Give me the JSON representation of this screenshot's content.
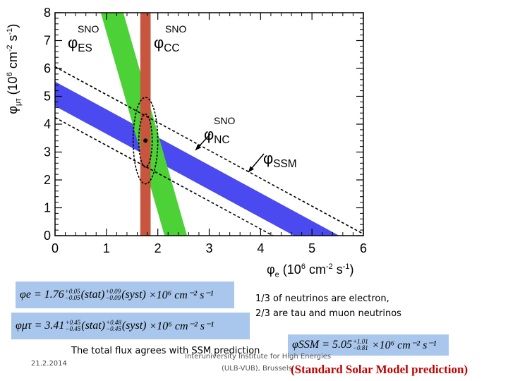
{
  "chart_data": {
    "type": "band-plot",
    "xlabel": "φ_e (10^6 cm^-2 s^-1)",
    "ylabel": "φ_μτ (10^6 cm^-2 s^-1)",
    "xlim": [
      0,
      6
    ],
    "ylim": [
      0,
      8
    ],
    "xticks": [
      0,
      1,
      2,
      3,
      4,
      5,
      6
    ],
    "yticks": [
      0,
      1,
      2,
      3,
      4,
      5,
      6,
      7,
      8
    ],
    "bands": [
      {
        "name": "SNO CC",
        "color": "#c8553d",
        "x_min": 1.66,
        "x_max": 1.86
      },
      {
        "name": "SNO ES",
        "color": "#4cd137",
        "sum_with_weight": "x + 0.155y",
        "center": 2.35,
        "half_width": 0.22
      },
      {
        "name": "SNO NC",
        "color": "#4a4af0",
        "sum": "x + y",
        "center": 5.09,
        "half_width": 0.44
      },
      {
        "name": "SSM",
        "style": "dashed",
        "sum": "x + y",
        "lower": 4.24,
        "upper": 6.06
      }
    ],
    "best_fit": {
      "x": 1.76,
      "y": 3.41
    },
    "contours": [
      {
        "level": "68%",
        "rx": 0.13,
        "ry": 0.95
      },
      {
        "level": "95%",
        "rx": 0.24,
        "ry": 1.55
      }
    ],
    "labels": {
      "sno_es": "SNO",
      "phi_es": "φ_ES",
      "sno_cc": "SNO",
      "phi_cc": "φ_CC",
      "sno_nc": "SNO",
      "phi_nc": "φ_NC",
      "phi_ssm": "φ_SSM"
    }
  },
  "equations": {
    "phi_e": {
      "lhs": "φe",
      "value": "1.76",
      "stat_up": "+0.05",
      "stat_dn": "−0.05",
      "syst_up": "+0.09",
      "syst_dn": "−0.09",
      "tail": "×10⁶ cm⁻² s⁻¹"
    },
    "phi_mutau": {
      "lhs": "φμτ",
      "value": "3.41",
      "stat_up": "+0.45",
      "stat_dn": "−0.45",
      "syst_up": "+0.48",
      "syst_dn": "−0.45",
      "tail": "×10⁶ cm⁻² s⁻¹"
    },
    "phi_ssm": {
      "lhs": "φSSM",
      "value": "5.05",
      "up": "+1.01",
      "dn": "−0.81",
      "tail": "×10⁶ cm⁻² s⁻¹"
    }
  },
  "notes": {
    "fraction_line1": "1/3 of neutrinos are electron,",
    "fraction_line2": "2/3 are tau and muon neutrinos",
    "total_flux": "The total flux agrees with SSM prediction",
    "ssm_prediction": "(Standard Solar Model prediction)",
    "institute_line1": "Interuniversity Institute for High Energies",
    "institute_line2": "(ULB-VUB), Brussels",
    "date": "21.2.2014"
  }
}
